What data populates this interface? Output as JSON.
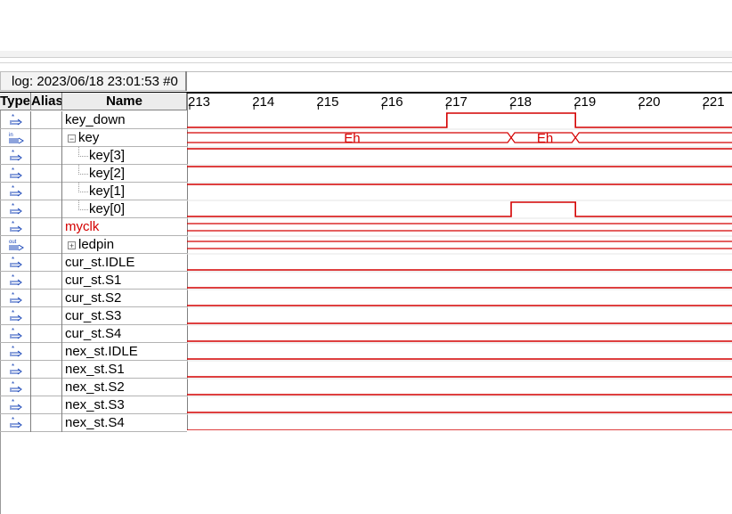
{
  "log_header": "log: 2023/06/18 23:01:53  #0",
  "columns": {
    "type": "Type",
    "alias": "Alias",
    "name": "Name"
  },
  "time_ticks": [
    "213",
    "214",
    "215",
    "216",
    "217",
    "218",
    "219",
    "220",
    "221"
  ],
  "signals": [
    {
      "name": "key_down",
      "icon": "wire-icon",
      "color": "#000000"
    },
    {
      "name": "key",
      "icon": "input-bus-icon",
      "expander": "⊟",
      "color": "#000000"
    },
    {
      "name": "key[3]",
      "icon": "wire-icon",
      "color": "#000000"
    },
    {
      "name": "key[2]",
      "icon": "wire-icon",
      "color": "#000000"
    },
    {
      "name": "key[1]",
      "icon": "wire-icon",
      "color": "#000000"
    },
    {
      "name": "key[0]",
      "icon": "wire-icon",
      "color": "#000000"
    },
    {
      "name": "myclk",
      "icon": "wire-icon",
      "color": "#d40000"
    },
    {
      "name": "ledpin",
      "icon": "output-bus-icon",
      "expander": "⊞",
      "color": "#000000"
    },
    {
      "name": "cur_st.IDLE",
      "icon": "wire-icon",
      "color": "#000000"
    },
    {
      "name": "cur_st.S1",
      "icon": "wire-icon",
      "color": "#000000"
    },
    {
      "name": "cur_st.S2",
      "icon": "wire-icon",
      "color": "#000000"
    },
    {
      "name": "cur_st.S3",
      "icon": "wire-icon",
      "color": "#000000"
    },
    {
      "name": "cur_st.S4",
      "icon": "wire-icon",
      "color": "#000000"
    },
    {
      "name": "nex_st.IDLE",
      "icon": "wire-icon",
      "color": "#000000"
    },
    {
      "name": "nex_st.S1",
      "icon": "wire-icon",
      "color": "#000000"
    },
    {
      "name": "nex_st.S2",
      "icon": "wire-icon",
      "color": "#000000"
    },
    {
      "name": "nex_st.S3",
      "icon": "wire-icon",
      "color": "#000000"
    },
    {
      "name": "nex_st.S4",
      "icon": "wire-icon",
      "color": "#000000"
    }
  ],
  "bus_values": {
    "key_first": "Eh",
    "key_second": "Eh"
  },
  "wave_color": "#d40000"
}
